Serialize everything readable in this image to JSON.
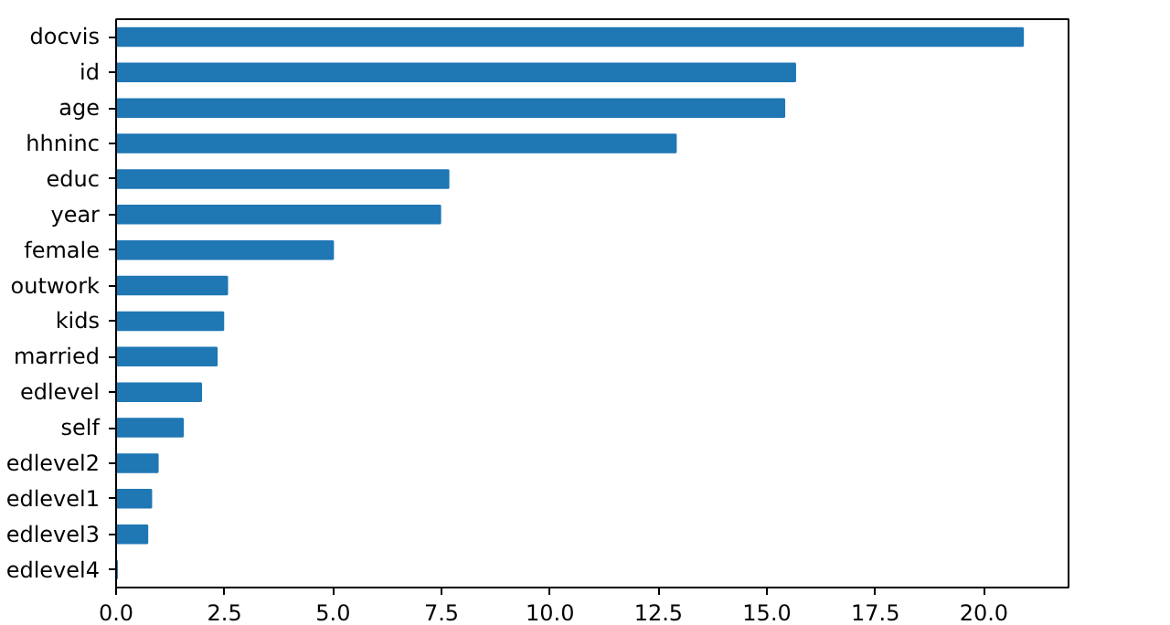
{
  "chart_data": {
    "type": "bar",
    "orientation": "horizontal",
    "categories": [
      "docvis",
      "id",
      "age",
      "hhninc",
      "educ",
      "year",
      "female",
      "outwork",
      "kids",
      "married",
      "edlevel",
      "self",
      "edlevel2",
      "edlevel1",
      "edlevel3",
      "edlevel4"
    ],
    "values": [
      20.9,
      15.65,
      15.4,
      12.9,
      7.66,
      7.47,
      5.0,
      2.56,
      2.47,
      2.32,
      1.96,
      1.54,
      0.96,
      0.81,
      0.72,
      0.02
    ],
    "color": "#1f77b4",
    "xlim": [
      0,
      21.95
    ],
    "xticks": [
      {
        "value": 0,
        "label": "0.0"
      },
      {
        "value": 2.5,
        "label": "2.5"
      },
      {
        "value": 5,
        "label": "5.0"
      },
      {
        "value": 7.5,
        "label": "7.5"
      },
      {
        "value": 10,
        "label": "10.0"
      },
      {
        "value": 12.5,
        "label": "12.5"
      },
      {
        "value": 15,
        "label": "15.0"
      },
      {
        "value": 17.5,
        "label": "17.5"
      },
      {
        "value": 20,
        "label": "20.0"
      }
    ]
  }
}
